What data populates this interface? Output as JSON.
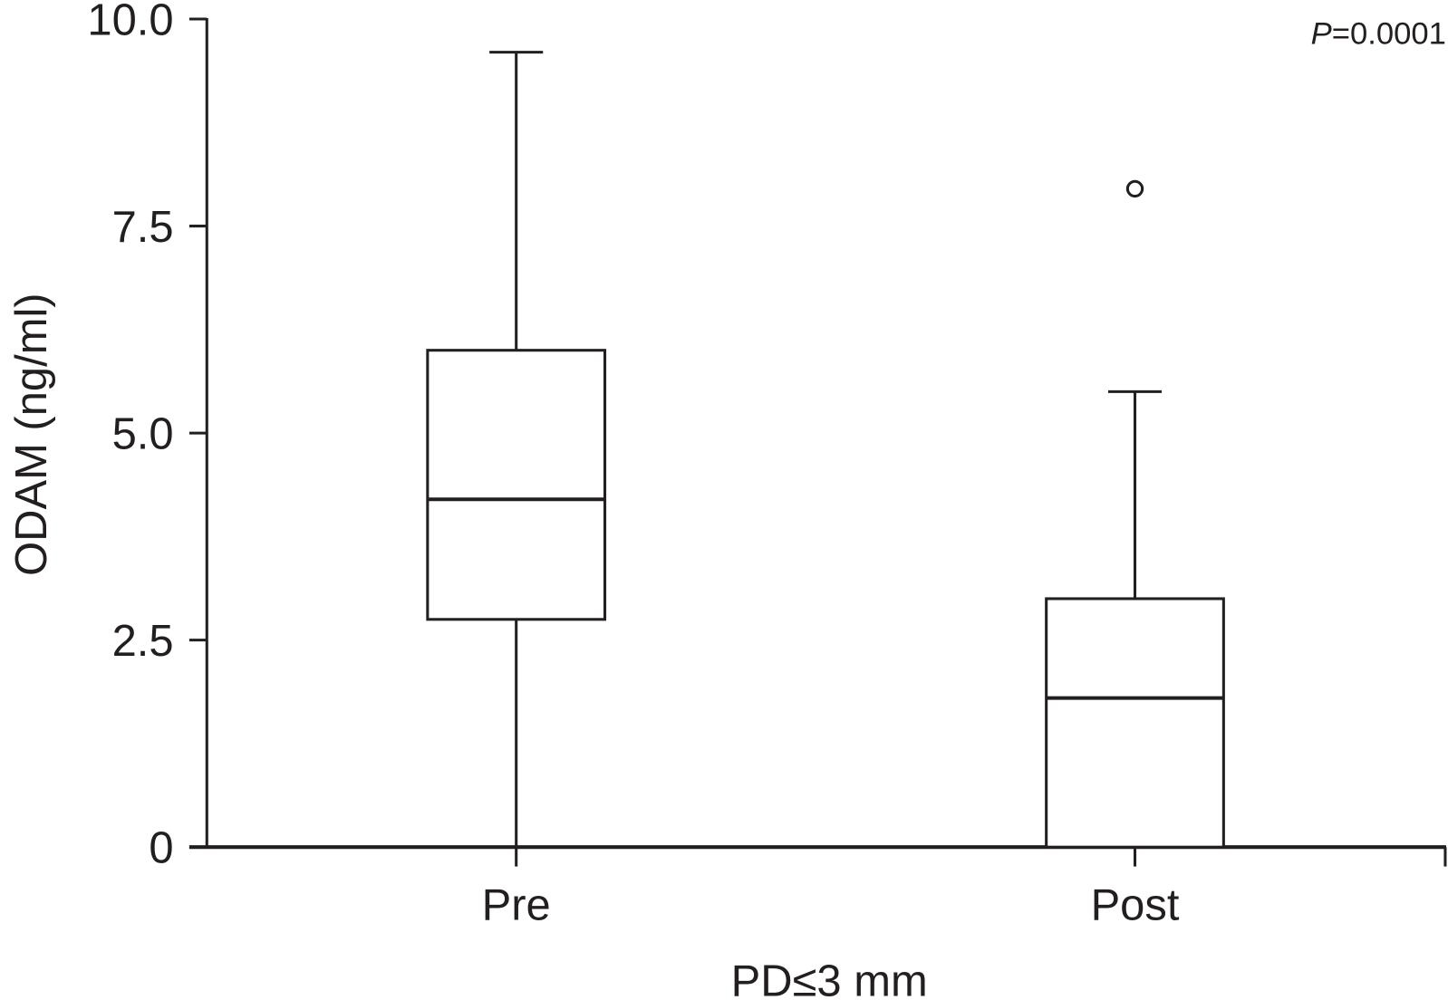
{
  "chart_data": {
    "type": "box",
    "title": "",
    "xlabel": "PD≤3 mm",
    "ylabel": "ODAM (ng/ml)",
    "ylim": [
      0,
      10
    ],
    "yticks": [
      "0",
      "2.5",
      "5.0",
      "7.5",
      "10.0"
    ],
    "ytick_values": [
      0,
      2.5,
      5,
      7.5,
      10
    ],
    "grid": false,
    "categories": [
      "Pre",
      "Post"
    ],
    "boxes": [
      {
        "category": "Pre",
        "whisker_low": 0,
        "q1": 2.75,
        "median": 4.2,
        "q3": 6.0,
        "whisker_high": 9.6,
        "outliers": []
      },
      {
        "category": "Post",
        "whisker_low": 0,
        "q1": 0,
        "median": 1.8,
        "q3": 3.0,
        "whisker_high": 5.5,
        "outliers": [
          7.95
        ]
      }
    ],
    "annotation": {
      "italic": "P",
      "text": "=0.0001"
    },
    "color": "#231f20"
  }
}
